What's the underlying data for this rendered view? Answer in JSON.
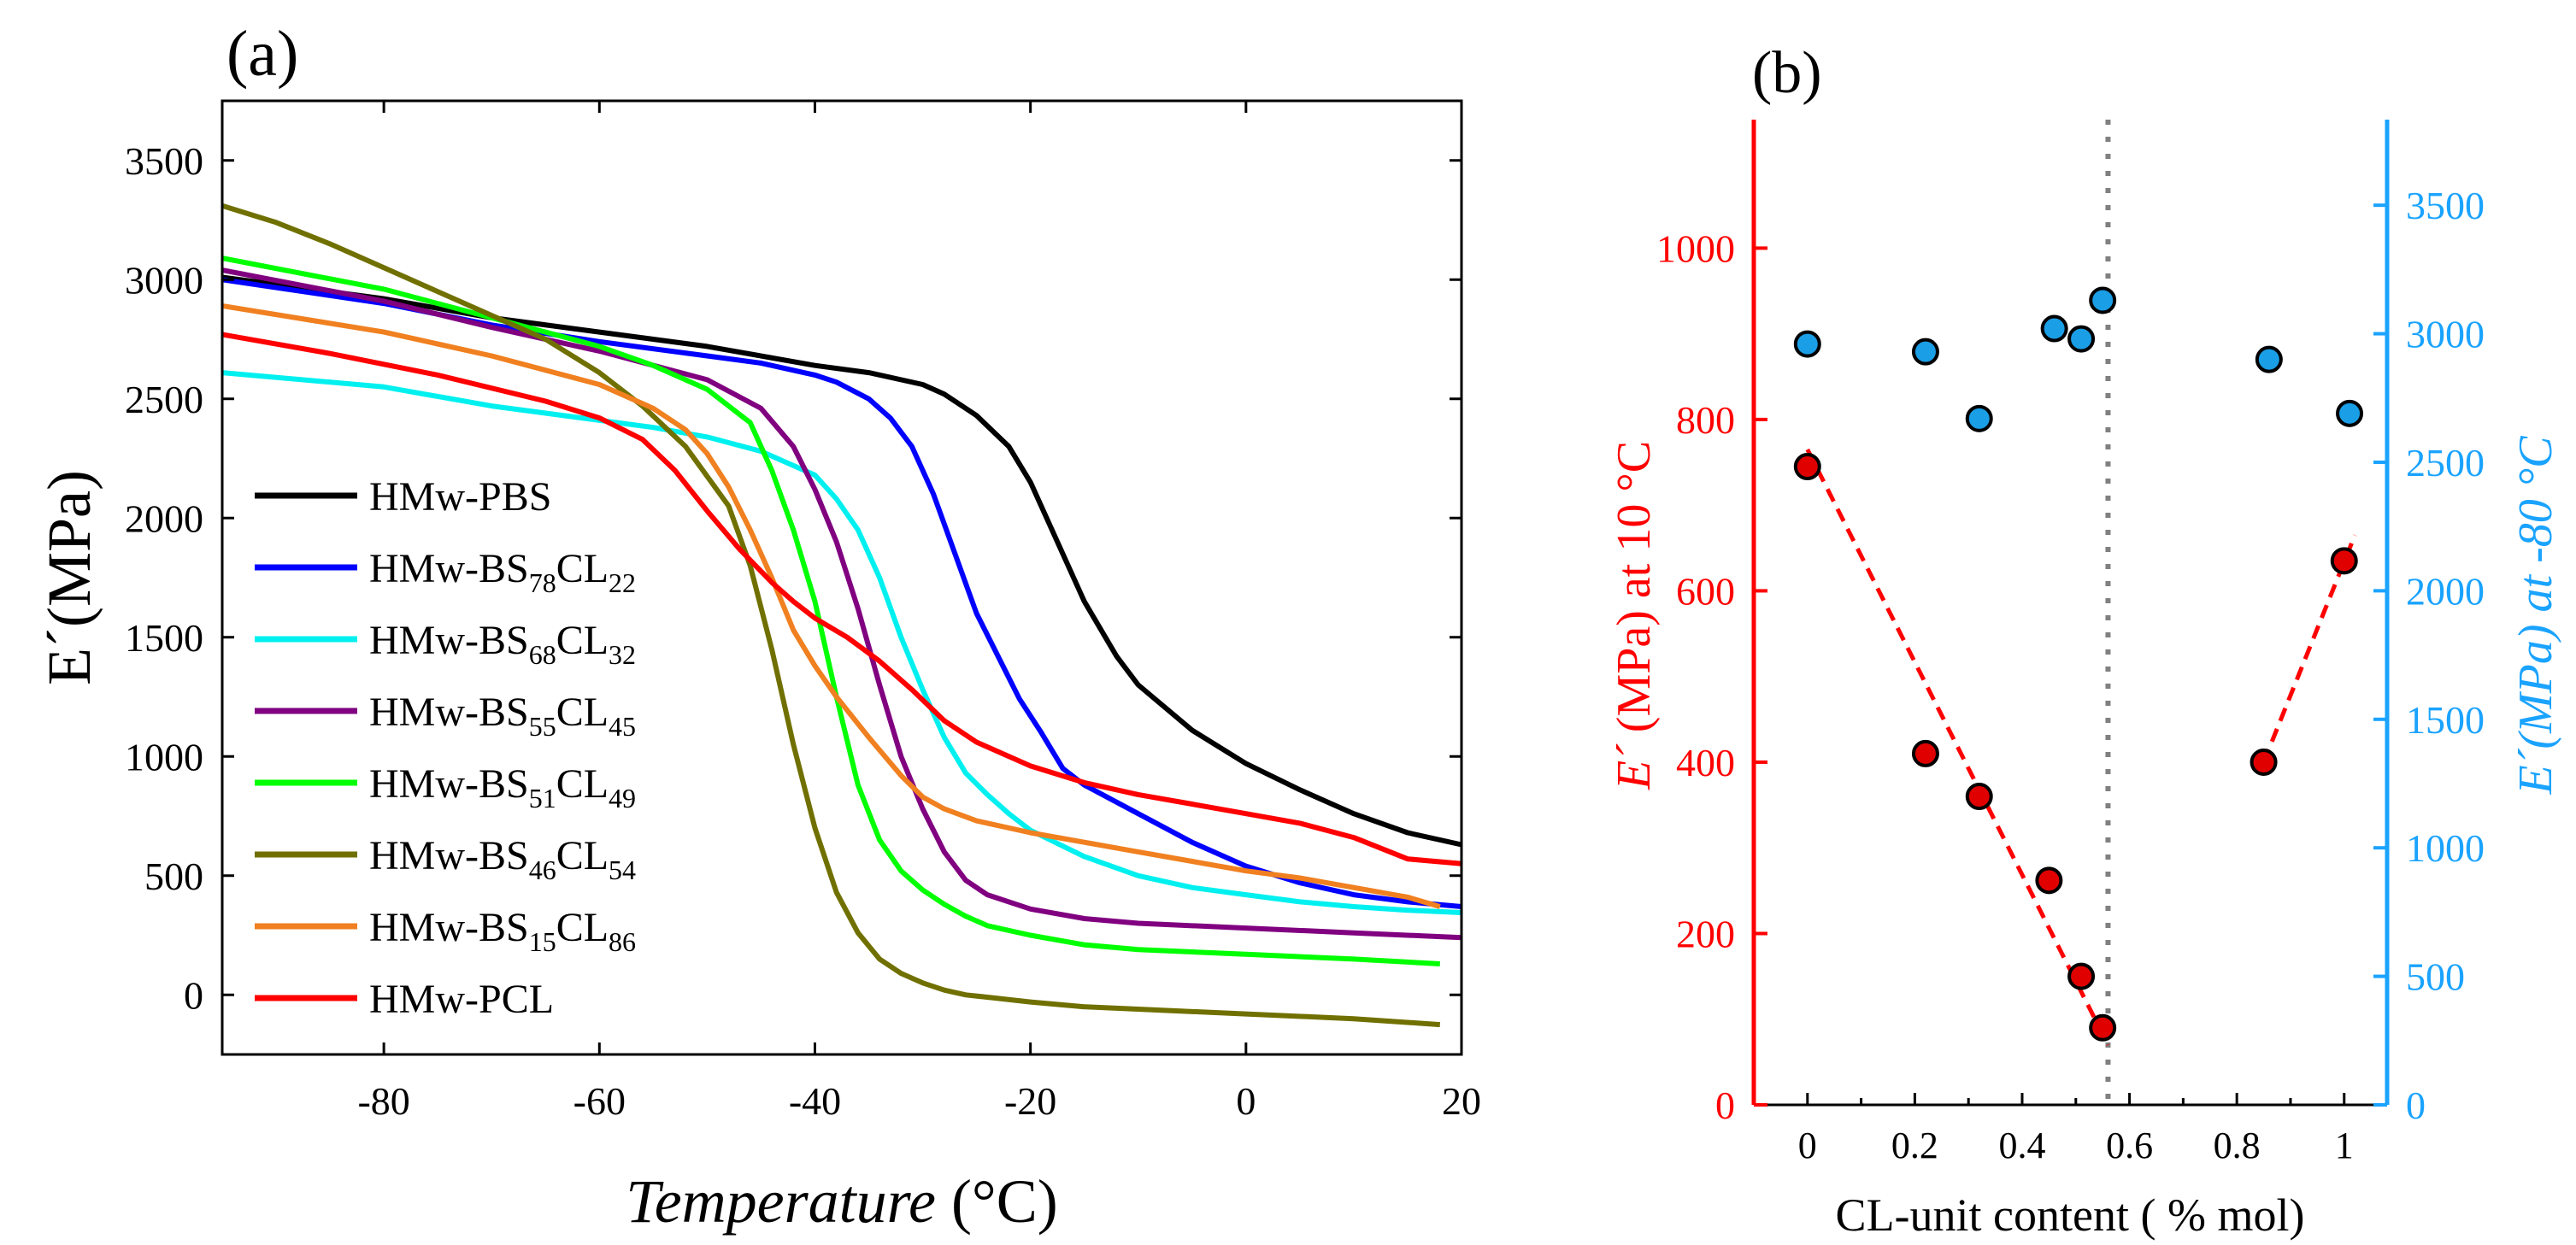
{
  "chart_data": [
    {
      "panel_label": "(a)",
      "type": "line",
      "xlabel": "Temperature",
      "xunit": "(°C)",
      "ylabel": "E´(MPa)",
      "xlim": [
        -95,
        20
      ],
      "ylim": [
        -250,
        3750
      ],
      "xticks": [
        -80,
        -60,
        -40,
        -20,
        0,
        20
      ],
      "yticks": [
        0,
        500,
        1000,
        1500,
        2000,
        2500,
        3000,
        3500
      ],
      "legend_position": "center-left",
      "series": [
        {
          "name": "HMw-PBS",
          "label_base": "HMw-PBS",
          "sub1": "",
          "mid": "",
          "sub2": "",
          "color": "#000000",
          "x": [
            -95,
            -80,
            -70,
            -60,
            -50,
            -40,
            -35,
            -30,
            -28,
            -25,
            -22,
            -20,
            -18,
            -15,
            -12,
            -10,
            -5,
            0,
            5,
            10,
            15,
            20
          ],
          "y": [
            3010,
            2920,
            2840,
            2780,
            2720,
            2640,
            2610,
            2560,
            2520,
            2430,
            2300,
            2150,
            1950,
            1650,
            1420,
            1300,
            1110,
            970,
            860,
            760,
            680,
            630
          ]
        },
        {
          "name": "HMw-BS78CL22",
          "label_base": "HMw-BS",
          "sub1": "78",
          "mid": "CL",
          "sub2": "22",
          "color": "#0000ff",
          "x": [
            -95,
            -80,
            -70,
            -60,
            -50,
            -45,
            -40,
            -38,
            -35,
            -33,
            -31,
            -29,
            -27,
            -25,
            -23,
            -21,
            -19,
            -17,
            -15,
            -10,
            -5,
            0,
            5,
            10,
            15,
            20
          ],
          "y": [
            3000,
            2900,
            2810,
            2740,
            2680,
            2650,
            2600,
            2570,
            2500,
            2420,
            2300,
            2100,
            1850,
            1600,
            1420,
            1240,
            1100,
            950,
            880,
            760,
            640,
            540,
            470,
            420,
            390,
            370
          ]
        },
        {
          "name": "HMw-BS68CL32",
          "label_base": "HMw-BS",
          "sub1": "68",
          "mid": "CL",
          "sub2": "32",
          "color": "#00f0f0",
          "x": [
            -95,
            -80,
            -70,
            -60,
            -55,
            -50,
            -45,
            -40,
            -38,
            -36,
            -34,
            -32,
            -30,
            -28,
            -26,
            -24,
            -22,
            -20,
            -15,
            -10,
            -5,
            0,
            5,
            10,
            15,
            20
          ],
          "y": [
            2610,
            2550,
            2470,
            2410,
            2380,
            2340,
            2280,
            2180,
            2080,
            1950,
            1750,
            1500,
            1280,
            1080,
            930,
            840,
            760,
            690,
            580,
            500,
            450,
            420,
            390,
            370,
            355,
            345
          ]
        },
        {
          "name": "HMw-BS55CL45",
          "label_base": "HMw-BS",
          "sub1": "55",
          "mid": "CL",
          "sub2": "45",
          "color": "#800080",
          "x": [
            -95,
            -80,
            -70,
            -60,
            -50,
            -45,
            -42,
            -40,
            -38,
            -36,
            -34,
            -32,
            -30,
            -28,
            -26,
            -24,
            -20,
            -15,
            -10,
            0,
            10,
            20
          ],
          "y": [
            3040,
            2910,
            2800,
            2700,
            2580,
            2460,
            2300,
            2120,
            1900,
            1620,
            1300,
            1000,
            780,
            600,
            480,
            420,
            360,
            320,
            300,
            280,
            260,
            240
          ]
        },
        {
          "name": "HMw-BS51CL49",
          "label_base": "HMw-BS",
          "sub1": "51",
          "mid": "CL",
          "sub2": "49",
          "color": "#00ff00",
          "x": [
            -95,
            -80,
            -70,
            -60,
            -55,
            -50,
            -46,
            -44,
            -42,
            -40,
            -38,
            -36,
            -34,
            -32,
            -30,
            -28,
            -26,
            -24,
            -20,
            -15,
            -10,
            0,
            10,
            18
          ],
          "y": [
            3090,
            2960,
            2840,
            2720,
            2640,
            2540,
            2400,
            2200,
            1950,
            1650,
            1250,
            880,
            650,
            520,
            440,
            380,
            330,
            290,
            250,
            210,
            190,
            170,
            150,
            130
          ]
        },
        {
          "name": "HMw-BS46CL54",
          "label_base": "HMw-BS",
          "sub1": "46",
          "mid": "CL",
          "sub2": "54",
          "color": "#707000",
          "x": [
            -95,
            -90,
            -85,
            -80,
            -75,
            -70,
            -65,
            -60,
            -56,
            -52,
            -48,
            -46,
            -44,
            -42,
            -40,
            -38,
            -36,
            -34,
            -32,
            -30,
            -28,
            -26,
            -24,
            -20,
            -15,
            -10,
            0,
            10,
            18
          ],
          "y": [
            3310,
            3240,
            3150,
            3050,
            2950,
            2850,
            2750,
            2610,
            2470,
            2300,
            2050,
            1800,
            1450,
            1050,
            700,
            430,
            260,
            150,
            90,
            50,
            20,
            0,
            -10,
            -30,
            -50,
            -60,
            -80,
            -100,
            -125
          ]
        },
        {
          "name": "HMw-BS15CL86",
          "label_base": "HMw-BS",
          "sub1": "15",
          "mid": "CL",
          "sub2": "86",
          "color": "#f08020",
          "x": [
            -95,
            -80,
            -70,
            -60,
            -55,
            -52,
            -50,
            -48,
            -46,
            -44,
            -42,
            -40,
            -38,
            -35,
            -32,
            -30,
            -28,
            -25,
            -20,
            -15,
            -10,
            -5,
            0,
            5,
            10,
            15,
            18
          ],
          "y": [
            2890,
            2780,
            2680,
            2560,
            2460,
            2370,
            2270,
            2130,
            1950,
            1750,
            1530,
            1380,
            1250,
            1080,
            920,
            830,
            780,
            730,
            680,
            640,
            600,
            560,
            520,
            490,
            450,
            410,
            370
          ]
        },
        {
          "name": "HMw-PCL",
          "label_base": "HMw-PCL",
          "sub1": "",
          "mid": "",
          "sub2": "",
          "color": "#ff0000",
          "x": [
            -95,
            -85,
            -75,
            -65,
            -60,
            -56,
            -53,
            -50,
            -47,
            -44,
            -42,
            -40,
            -37,
            -34,
            -31,
            -28,
            -25,
            -20,
            -15,
            -10,
            -5,
            0,
            5,
            10,
            15,
            20
          ],
          "y": [
            2770,
            2690,
            2600,
            2490,
            2420,
            2330,
            2200,
            2030,
            1870,
            1730,
            1650,
            1580,
            1500,
            1400,
            1280,
            1150,
            1060,
            960,
            890,
            840,
            800,
            760,
            720,
            660,
            570,
            550
          ]
        }
      ]
    },
    {
      "panel_label": "(b)",
      "type": "scatter",
      "xlabel": "CL-unit content ( % mol)",
      "ylabel_left": "(MPa) at 10 °C",
      "ylabel_left_symbol": "E´",
      "ylabel_right": "E´(MPa) at -80 °C",
      "xlim": [
        -0.1,
        1.08
      ],
      "ylim_left": [
        0,
        1150
      ],
      "ylim_right": [
        0,
        3833
      ],
      "xticks": [
        0,
        0.2,
        0.4,
        0.6,
        0.8,
        1
      ],
      "xtick_labels": [
        "0",
        "0.2",
        "0.4",
        "0.6",
        "0.8",
        "1"
      ],
      "yticks_left": [
        0,
        200,
        400,
        600,
        800,
        1000
      ],
      "yticks_right": [
        0,
        500,
        1000,
        1500,
        2000,
        2500,
        3000,
        3500
      ],
      "left_axis_color": "#ff0000",
      "right_axis_color": "#1aa3ff",
      "vertical_dotted_line_x": 0.56,
      "series": [
        {
          "name": "E´ at 10 °C",
          "axis": "left",
          "color": "#e00000",
          "x": [
            0,
            0.22,
            0.32,
            0.45,
            0.51,
            0.55,
            0.85,
            1.0
          ],
          "y": [
            745,
            410,
            360,
            262,
            150,
            90,
            400,
            635
          ]
        },
        {
          "name": "E´ at -80 °C",
          "axis": "right",
          "color": "#1a9ee6",
          "x": [
            0,
            0.22,
            0.32,
            0.46,
            0.51,
            0.55,
            0.86,
            1.01
          ],
          "y": [
            2960,
            2930,
            2670,
            3020,
            2980,
            3130,
            2900,
            2690
          ]
        }
      ],
      "trend_lines": [
        {
          "x": [
            0,
            0.56
          ],
          "y": [
            765,
            70
          ],
          "color": "#ff0000"
        },
        {
          "x": [
            0.85,
            1.02
          ],
          "y": [
            400,
            665
          ],
          "color": "#ff0000"
        }
      ]
    }
  ]
}
